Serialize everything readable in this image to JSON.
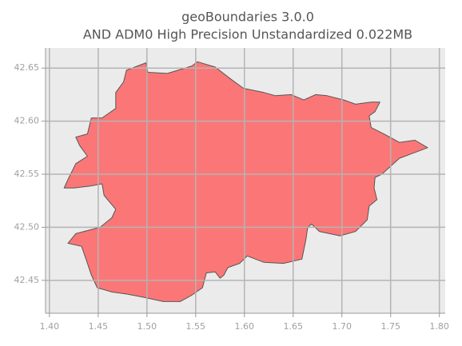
{
  "chart_data": {
    "type": "map",
    "title": "geoBoundaries 3.0.0",
    "subtitle": "AND ADM0 High Precision Unstandardized 0.022MB",
    "color": "#ff5a5a",
    "grid": true,
    "xlim": [
      1.396,
      1.806
    ],
    "ylim": [
      42.419,
      42.669
    ],
    "xticks": [
      {
        "value": 1.4,
        "label": "1.40"
      },
      1.45,
      {
        "value": 1.5,
        "label": "1.50"
      },
      1.55,
      {
        "value": 1.6,
        "label": "1.60"
      },
      1.65,
      {
        "value": 1.7,
        "label": "1.70"
      },
      1.75,
      {
        "value": 1.8,
        "label": "1.80"
      }
    ],
    "yticks": [
      42.45,
      {
        "value": 42.5,
        "label": "42.50"
      },
      42.55,
      {
        "value": 42.6,
        "label": "42.60"
      },
      42.65
    ],
    "x": [
      1.499,
      1.501,
      1.521,
      1.546,
      1.552,
      1.57,
      1.587,
      1.599,
      1.62,
      1.632,
      1.648,
      1.661,
      1.673,
      1.685,
      1.702,
      1.714,
      1.73,
      1.739,
      1.734,
      1.728,
      1.73,
      1.743,
      1.759,
      1.775,
      1.788,
      1.759,
      1.741,
      1.734,
      1.733,
      1.736,
      1.728,
      1.726,
      1.714,
      1.698,
      1.677,
      1.669,
      1.665,
      1.663,
      1.659,
      1.64,
      1.62,
      1.603,
      1.595,
      1.583,
      1.579,
      1.575,
      1.57,
      1.561,
      1.557,
      1.546,
      1.534,
      1.517,
      1.497,
      1.48,
      1.464,
      1.449,
      1.443,
      1.439,
      1.433,
      1.419,
      1.427,
      1.452,
      1.464,
      1.468,
      1.456,
      1.454,
      1.443,
      1.425,
      1.415,
      1.419,
      1.427,
      1.439,
      1.431,
      1.427,
      1.439,
      1.443,
      1.454,
      1.468,
      1.468,
      1.476,
      1.479
    ],
    "y": [
      42.655,
      42.646,
      42.645,
      42.652,
      42.656,
      42.651,
      42.639,
      42.631,
      42.627,
      42.624,
      42.625,
      42.62,
      42.625,
      42.624,
      42.62,
      42.616,
      42.618,
      42.618,
      42.609,
      42.605,
      42.594,
      42.588,
      42.58,
      42.582,
      42.575,
      42.565,
      42.55,
      42.547,
      42.537,
      42.526,
      42.52,
      42.507,
      42.496,
      42.492,
      42.496,
      42.503,
      42.5,
      42.488,
      42.47,
      42.466,
      42.467,
      42.473,
      42.466,
      42.462,
      42.455,
      42.452,
      42.458,
      42.457,
      42.443,
      42.436,
      42.43,
      42.43,
      42.434,
      42.437,
      42.439,
      42.443,
      42.455,
      42.466,
      42.482,
      42.485,
      42.494,
      42.5,
      42.509,
      42.517,
      42.53,
      42.541,
      42.539,
      42.537,
      42.537,
      42.545,
      42.56,
      42.567,
      42.577,
      42.585,
      42.588,
      42.603,
      42.603,
      42.612,
      42.627,
      42.637,
      42.648
    ]
  }
}
